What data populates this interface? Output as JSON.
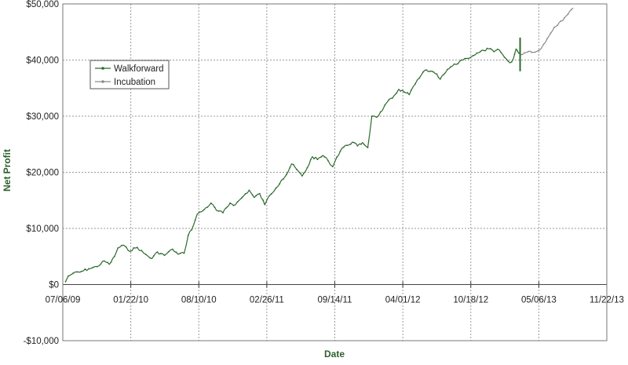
{
  "chart_data": {
    "type": "line",
    "xlabel": "Date",
    "ylabel": "Net Profit",
    "ylim": [
      -10000,
      50000
    ],
    "y_ticks": [
      -10000,
      0,
      10000,
      20000,
      30000,
      40000,
      50000
    ],
    "y_tick_labels": [
      "-$10,000",
      "$0",
      "$10,000",
      "$20,000",
      "$30,000",
      "$40,000",
      "$50,000"
    ],
    "xlim": [
      "2009-07-06",
      "2013-11-22"
    ],
    "x_ticks": [
      "2009-07-06",
      "2010-01-22",
      "2010-08-10",
      "2011-02-26",
      "2011-09-14",
      "2012-04-01",
      "2012-10-18",
      "2013-05-06",
      "2013-11-22"
    ],
    "x_tick_labels": [
      "07/06/09",
      "01/22/10",
      "08/10/10",
      "02/26/11",
      "09/14/11",
      "04/01/12",
      "10/18/12",
      "05/06/13",
      "11/22/13"
    ],
    "grid": true,
    "legend_position": "top-left",
    "colors": {
      "walkforward": "#2e6b2e",
      "incubation": "#8a8a8a",
      "divider": "#2e6b2e",
      "grid": "#9a9a9a",
      "axis_title": "#2e5e2e"
    },
    "divider_date": "2013-03-12",
    "divider_range": [
      38000,
      44000
    ],
    "series": [
      {
        "name": "Walkforward",
        "color": "#2e6b2e",
        "points": [
          [
            "2009-07-14",
            500
          ],
          [
            "2009-07-22",
            1500
          ],
          [
            "2009-08-05",
            2000
          ],
          [
            "2009-08-25",
            2200
          ],
          [
            "2009-09-20",
            2800
          ],
          [
            "2009-10-15",
            3200
          ],
          [
            "2009-11-05",
            4200
          ],
          [
            "2009-11-20",
            3600
          ],
          [
            "2009-12-05",
            5000
          ],
          [
            "2009-12-15",
            6500
          ],
          [
            "2010-01-01",
            7000
          ],
          [
            "2010-01-15",
            6000
          ],
          [
            "2010-02-10",
            6600
          ],
          [
            "2010-03-01",
            5600
          ],
          [
            "2010-03-25",
            4600
          ],
          [
            "2010-04-10",
            5800
          ],
          [
            "2010-05-01",
            5200
          ],
          [
            "2010-05-25",
            6300
          ],
          [
            "2010-06-10",
            5400
          ],
          [
            "2010-06-28",
            5600
          ],
          [
            "2010-07-10",
            8800
          ],
          [
            "2010-07-25",
            10500
          ],
          [
            "2010-08-05",
            12500
          ],
          [
            "2010-08-25",
            13300
          ],
          [
            "2010-09-15",
            14500
          ],
          [
            "2010-10-01",
            13200
          ],
          [
            "2010-10-20",
            12800
          ],
          [
            "2010-11-10",
            14500
          ],
          [
            "2010-11-25",
            14200
          ],
          [
            "2010-12-15",
            15500
          ],
          [
            "2011-01-05",
            16800
          ],
          [
            "2011-01-20",
            15500
          ],
          [
            "2011-02-05",
            16200
          ],
          [
            "2011-02-20",
            14200
          ],
          [
            "2011-03-05",
            15800
          ],
          [
            "2011-03-25",
            17200
          ],
          [
            "2011-04-10",
            18600
          ],
          [
            "2011-04-25",
            19600
          ],
          [
            "2011-05-10",
            21500
          ],
          [
            "2011-05-25",
            20500
          ],
          [
            "2011-06-10",
            19300
          ],
          [
            "2011-06-25",
            20800
          ],
          [
            "2011-07-10",
            22800
          ],
          [
            "2011-07-25",
            22300
          ],
          [
            "2011-08-10",
            23000
          ],
          [
            "2011-08-25",
            22100
          ],
          [
            "2011-09-08",
            21000
          ],
          [
            "2011-09-20",
            22700
          ],
          [
            "2011-10-05",
            24300
          ],
          [
            "2011-10-20",
            24800
          ],
          [
            "2011-11-05",
            25400
          ],
          [
            "2011-11-20",
            24700
          ],
          [
            "2011-12-05",
            25300
          ],
          [
            "2011-12-20",
            24400
          ],
          [
            "2012-01-01",
            30000
          ],
          [
            "2012-01-15",
            29800
          ],
          [
            "2012-02-01",
            31000
          ],
          [
            "2012-02-15",
            32500
          ],
          [
            "2012-03-01",
            33200
          ],
          [
            "2012-03-20",
            34800
          ],
          [
            "2012-04-05",
            34300
          ],
          [
            "2012-04-20",
            33800
          ],
          [
            "2012-05-01",
            35200
          ],
          [
            "2012-05-20",
            36800
          ],
          [
            "2012-06-05",
            38200
          ],
          [
            "2012-06-20",
            38000
          ],
          [
            "2012-07-05",
            37600
          ],
          [
            "2012-07-20",
            36600
          ],
          [
            "2012-08-05",
            37800
          ],
          [
            "2012-08-20",
            38800
          ],
          [
            "2012-09-05",
            39200
          ],
          [
            "2012-09-20",
            40000
          ],
          [
            "2012-10-05",
            40300
          ],
          [
            "2012-10-25",
            40800
          ],
          [
            "2012-11-10",
            41300
          ],
          [
            "2012-11-25",
            41700
          ],
          [
            "2012-12-10",
            42000
          ],
          [
            "2012-12-25",
            41500
          ],
          [
            "2013-01-10",
            41800
          ],
          [
            "2013-01-25",
            40500
          ],
          [
            "2013-02-10",
            39500
          ],
          [
            "2013-02-20",
            40200
          ],
          [
            "2013-02-28",
            42000
          ],
          [
            "2013-03-08",
            41200
          ],
          [
            "2013-03-12",
            41000
          ]
        ]
      },
      {
        "name": "Incubation",
        "color": "#8a8a8a",
        "points": [
          [
            "2013-03-12",
            41000
          ],
          [
            "2013-03-25",
            41300
          ],
          [
            "2013-04-10",
            41600
          ],
          [
            "2013-04-25",
            41400
          ],
          [
            "2013-05-06",
            41700
          ],
          [
            "2013-05-20",
            42800
          ],
          [
            "2013-06-05",
            44300
          ],
          [
            "2013-06-20",
            45800
          ],
          [
            "2013-07-05",
            46700
          ],
          [
            "2013-07-20",
            47500
          ],
          [
            "2013-08-05",
            48700
          ],
          [
            "2013-08-15",
            49300
          ]
        ]
      }
    ]
  }
}
